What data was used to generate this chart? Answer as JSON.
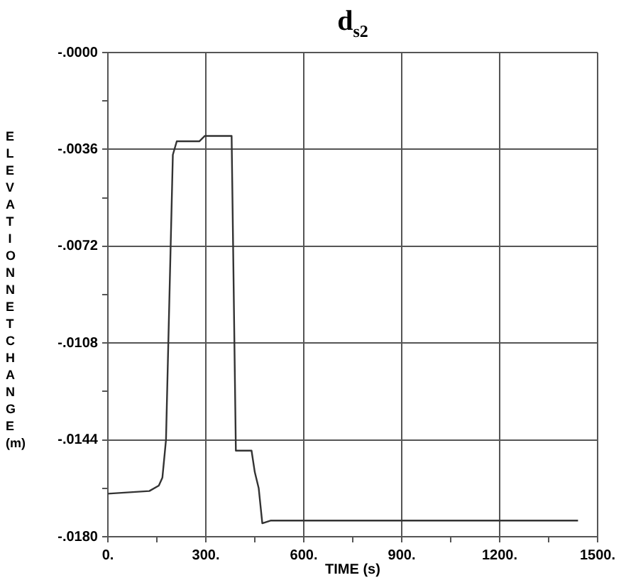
{
  "chart_data": {
    "type": "line",
    "title": "d$_{s2}$",
    "xlabel": "TIME (s)",
    "ylabel": "ELEVATION NET CHANGE (m)",
    "series": [
      {
        "color": "#333333",
        "x": [
          0,
          3,
          127,
          156,
          167,
          178,
          199,
          211,
          280,
          297,
          379,
          392,
          440,
          450,
          462,
          473,
          498,
          513,
          1440
        ],
        "values": [
          -0.0164,
          -0.0164,
          -0.0163,
          -0.0161,
          -0.0158,
          -0.0144,
          -0.0038,
          -0.0033,
          -0.0033,
          -0.0031,
          -0.0031,
          -0.0148,
          -0.0148,
          -0.0156,
          -0.0162,
          -0.0175,
          -0.0174,
          -0.0174,
          -0.0174
        ]
      }
    ],
    "xlim": [
      0,
      1500
    ],
    "ylim": [
      -0.018,
      0
    ],
    "xticks": [
      {
        "value": 0,
        "label": "0."
      },
      {
        "value": 150,
        "label": null
      },
      {
        "value": 300,
        "label": "300."
      },
      {
        "value": 450,
        "label": null
      },
      {
        "value": 600,
        "label": "600."
      },
      {
        "value": 750,
        "label": null
      },
      {
        "value": 900,
        "label": "900."
      },
      {
        "value": 1050,
        "label": null
      },
      {
        "value": 1200,
        "label": "1200."
      },
      {
        "value": 1350,
        "label": null
      },
      {
        "value": 1500,
        "label": "1500."
      }
    ],
    "yticks": [
      {
        "value": -0.018,
        "label": "-.0180"
      },
      {
        "value": -0.0162,
        "label": null
      },
      {
        "value": -0.0144,
        "label": "-.0144"
      },
      {
        "value": -0.0126,
        "label": null
      },
      {
        "value": -0.0108,
        "label": "-.0108"
      },
      {
        "value": -0.009,
        "label": null
      },
      {
        "value": -0.0072,
        "label": "-.0072"
      },
      {
        "value": -0.0054,
        "label": null
      },
      {
        "value": -0.0036,
        "label": "-.0036"
      },
      {
        "value": -0.0018,
        "label": null
      },
      {
        "value": 0,
        "label": "-.0000"
      }
    ],
    "grid": true,
    "legend": false,
    "marker": "none",
    "line_style": "solid"
  }
}
